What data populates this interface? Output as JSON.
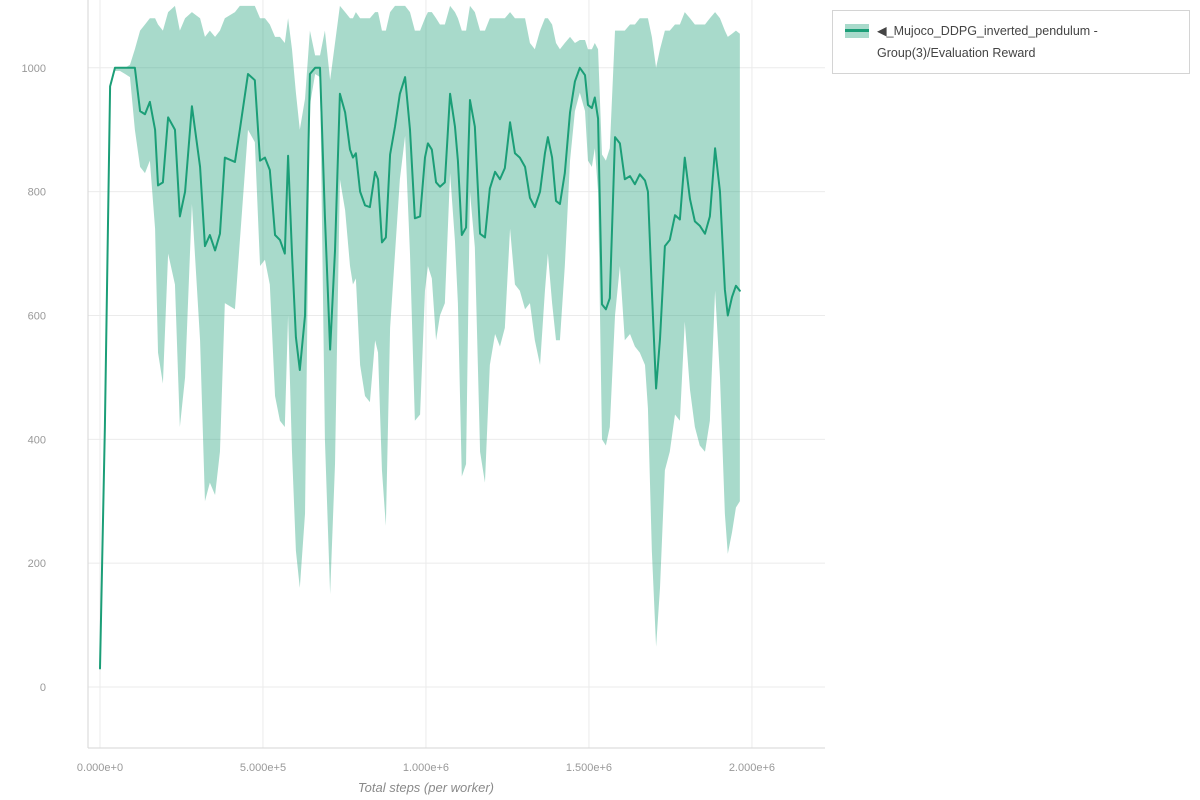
{
  "page": {
    "background": "#ffffff"
  },
  "legend": {
    "label": "◀_Mujoco_DDPG_inverted_pendulum - Group(3)/Evaluation Reward",
    "swatch_band_color": "#1b9e77",
    "swatch_band_opacity": 0.38,
    "swatch_line_color": "#1b9e77"
  },
  "chart_data": {
    "type": "line",
    "title": "",
    "xlabel": "Total steps (per worker)",
    "ylabel": "",
    "xlim": [
      -36800,
      2224200
    ],
    "ylim": [
      -98.5,
      1109.5
    ],
    "grid": true,
    "legend_position": "top-right-outside",
    "x_ticks": [
      {
        "v": 0,
        "label": "0.000e+0"
      },
      {
        "v": 500000,
        "label": "5.000e+5"
      },
      {
        "v": 1000000,
        "label": "1.000e+6"
      },
      {
        "v": 1500000,
        "label": "1.500e+6"
      },
      {
        "v": 2000000,
        "label": "2.000e+6"
      }
    ],
    "y_ticks": [
      {
        "v": 0,
        "label": "0"
      },
      {
        "v": 200,
        "label": "200"
      },
      {
        "v": 400,
        "label": "400"
      },
      {
        "v": 600,
        "label": "600"
      },
      {
        "v": 800,
        "label": "800"
      },
      {
        "v": 1000,
        "label": "1000"
      }
    ],
    "style": {
      "line_color": "#1b9e77",
      "band_color": "#1b9e77",
      "band_opacity": 0.38,
      "grid_color": "#ebebeb",
      "axis_line_color": "#d6d6d6",
      "tick_color": "#999999",
      "axis_title_color": "#8a8a8a"
    },
    "series": [
      {
        "name": "_Mujoco_DDPG_inverted_pendulum - Group(3)/Evaluation Reward",
        "x": [
          0,
          15000,
          31000,
          46000,
          61000,
          77000,
          92000,
          107000,
          123000,
          138000,
          153000,
          169000,
          178000,
          193000,
          209000,
          230000,
          245000,
          261000,
          282000,
          307000,
          322000,
          337000,
          353000,
          368000,
          383000,
          414000,
          429000,
          454000,
          475000,
          491000,
          506000,
          521000,
          537000,
          552000,
          567000,
          577000,
          589000,
          601000,
          613000,
          629000,
          644000,
          660000,
          675000,
          690000,
          706000,
          721000,
          736000,
          752000,
          767000,
          776000,
          785000,
          798000,
          813000,
          828000,
          844000,
          853000,
          865000,
          877000,
          890000,
          905000,
          920000,
          936000,
          951000,
          966000,
          982000,
          997000,
          1006000,
          1018000,
          1031000,
          1043000,
          1058000,
          1074000,
          1089000,
          1098000,
          1110000,
          1123000,
          1135000,
          1150000,
          1166000,
          1181000,
          1196000,
          1212000,
          1227000,
          1242000,
          1258000,
          1273000,
          1288000,
          1304000,
          1319000,
          1334000,
          1350000,
          1365000,
          1374000,
          1387000,
          1399000,
          1411000,
          1426000,
          1442000,
          1457000,
          1472000,
          1488000,
          1497000,
          1509000,
          1518000,
          1528000,
          1540000,
          1552000,
          1564000,
          1580000,
          1595000,
          1610000,
          1626000,
          1641000,
          1656000,
          1672000,
          1681000,
          1693000,
          1706000,
          1718000,
          1733000,
          1748000,
          1764000,
          1779000,
          1794000,
          1810000,
          1825000,
          1840000,
          1856000,
          1871000,
          1887000,
          1902000,
          1917000,
          1926000,
          1939000,
          1951000,
          1963000
        ],
        "mean": [
          30,
          420,
          970,
          1000,
          1000,
          1000,
          1000,
          1000,
          930,
          925,
          945,
          900,
          810,
          815,
          920,
          900,
          760,
          800,
          938,
          840,
          712,
          730,
          705,
          732,
          855,
          848,
          900,
          990,
          980,
          850,
          855,
          835,
          730,
          722,
          700,
          858,
          700,
          565,
          512,
          600,
          990,
          1000,
          1000,
          760,
          545,
          705,
          958,
          928,
          868,
          855,
          862,
          800,
          778,
          775,
          832,
          820,
          718,
          726,
          860,
          905,
          958,
          985,
          900,
          757,
          760,
          855,
          878,
          868,
          815,
          808,
          815,
          958,
          905,
          850,
          730,
          742,
          948,
          905,
          732,
          726,
          805,
          832,
          820,
          838,
          912,
          862,
          855,
          840,
          790,
          775,
          800,
          862,
          888,
          855,
          785,
          780,
          830,
          928,
          978,
          1000,
          988,
          940,
          935,
          952,
          918,
          618,
          610,
          628,
          888,
          878,
          820,
          825,
          812,
          828,
          818,
          800,
          640,
          482,
          562,
          712,
          722,
          762,
          755,
          855,
          788,
          752,
          745,
          732,
          760,
          870,
          800,
          642,
          600,
          630,
          648,
          640
        ],
        "band_low": [
          30,
          420,
          970,
          995,
          995,
          990,
          985,
          900,
          840,
          830,
          850,
          740,
          540,
          490,
          700,
          650,
          420,
          500,
          780,
          560,
          300,
          330,
          310,
          380,
          620,
          610,
          720,
          900,
          880,
          680,
          690,
          650,
          470,
          430,
          420,
          600,
          380,
          220,
          160,
          280,
          940,
          990,
          985,
          400,
          150,
          360,
          820,
          770,
          680,
          650,
          660,
          520,
          470,
          460,
          560,
          540,
          350,
          260,
          580,
          700,
          820,
          890,
          700,
          430,
          440,
          640,
          680,
          660,
          560,
          600,
          620,
          830,
          720,
          620,
          340,
          360,
          800,
          710,
          380,
          330,
          520,
          570,
          550,
          580,
          740,
          650,
          640,
          610,
          620,
          560,
          520,
          640,
          700,
          620,
          560,
          560,
          680,
          850,
          930,
          960,
          930,
          850,
          840,
          870,
          800,
          400,
          390,
          420,
          600,
          680,
          560,
          570,
          550,
          540,
          520,
          450,
          220,
          65,
          160,
          350,
          380,
          440,
          430,
          590,
          480,
          420,
          390,
          380,
          430,
          640,
          500,
          280,
          215,
          250,
          290,
          300
        ],
        "band_high": [
          30,
          420,
          970,
          1000,
          1000,
          1000,
          1005,
          1030,
          1060,
          1070,
          1080,
          1080,
          1070,
          1060,
          1090,
          1100,
          1060,
          1080,
          1090,
          1080,
          1050,
          1060,
          1050,
          1060,
          1080,
          1090,
          1100,
          1100,
          1100,
          1080,
          1080,
          1070,
          1050,
          1050,
          1040,
          1080,
          1030,
          960,
          900,
          950,
          1060,
          1020,
          1020,
          1060,
          980,
          1040,
          1100,
          1090,
          1080,
          1080,
          1090,
          1080,
          1080,
          1080,
          1090,
          1090,
          1060,
          1060,
          1090,
          1100,
          1100,
          1100,
          1090,
          1060,
          1060,
          1080,
          1090,
          1090,
          1080,
          1070,
          1070,
          1100,
          1090,
          1080,
          1060,
          1060,
          1100,
          1090,
          1060,
          1060,
          1080,
          1080,
          1080,
          1080,
          1090,
          1080,
          1080,
          1080,
          1040,
          1030,
          1060,
          1080,
          1080,
          1070,
          1040,
          1030,
          1040,
          1050,
          1040,
          1045,
          1045,
          1030,
          1030,
          1040,
          1030,
          860,
          850,
          870,
          1060,
          1060,
          1060,
          1070,
          1070,
          1080,
          1080,
          1080,
          1050,
          1000,
          1030,
          1060,
          1060,
          1070,
          1070,
          1090,
          1080,
          1070,
          1070,
          1070,
          1080,
          1090,
          1080,
          1060,
          1050,
          1055,
          1060,
          1055
        ]
      }
    ]
  }
}
